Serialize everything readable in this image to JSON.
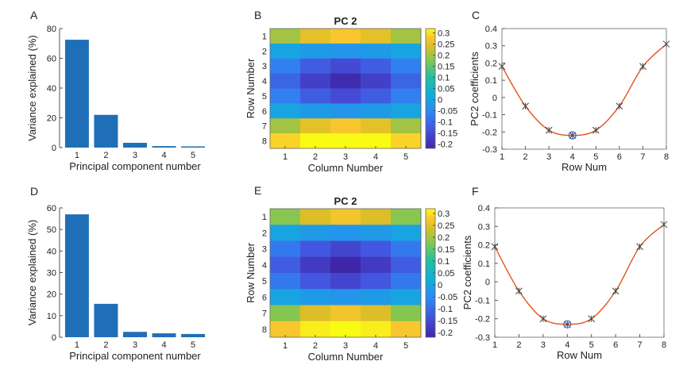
{
  "chart_data": [
    {
      "panel": "A",
      "type": "bar",
      "categories": [
        "1",
        "2",
        "3",
        "4",
        "5"
      ],
      "values": [
        72.5,
        22.0,
        3.2,
        1.0,
        0.8
      ],
      "xlabel": "Principal component number",
      "ylabel": "Variance explained (%)",
      "ylim": [
        0,
        80
      ],
      "yticks": [
        "0",
        "20",
        "40",
        "60",
        "80"
      ],
      "color": "#1f6fb8"
    },
    {
      "panel": "B",
      "type": "heatmap",
      "title": "PC 2",
      "xlabel": "Column Number",
      "ylabel": "Row Number",
      "xticks": [
        "1",
        "2",
        "3",
        "4",
        "5"
      ],
      "yticks": [
        "1",
        "2",
        "3",
        "4",
        "5",
        "6",
        "7",
        "8"
      ],
      "clim": [
        -0.22,
        0.32
      ],
      "cbticks": [
        "0.3",
        "0.25",
        "0.2",
        "0.15",
        "0.1",
        "0.05",
        "0",
        "-0.05",
        "-0.1",
        "-0.15",
        "-0.2"
      ],
      "values": [
        [
          0.2,
          0.25,
          0.28,
          0.25,
          0.2
        ],
        [
          0.0,
          -0.02,
          -0.03,
          -0.02,
          0.0
        ],
        [
          -0.07,
          -0.12,
          -0.15,
          -0.12,
          -0.07
        ],
        [
          -0.11,
          -0.17,
          -0.21,
          -0.17,
          -0.11
        ],
        [
          -0.07,
          -0.12,
          -0.15,
          -0.12,
          -0.07
        ],
        [
          0.0,
          -0.02,
          -0.03,
          -0.02,
          0.0
        ],
        [
          0.2,
          0.25,
          0.28,
          0.25,
          0.2
        ],
        [
          0.29,
          0.32,
          0.32,
          0.32,
          0.29
        ]
      ]
    },
    {
      "panel": "C",
      "type": "line",
      "x": [
        1,
        2,
        3,
        4,
        5,
        6,
        7,
        8
      ],
      "y": [
        0.18,
        -0.05,
        -0.19,
        -0.22,
        -0.19,
        -0.05,
        0.18,
        0.31
      ],
      "highlight_x": 4,
      "xlabel": "Row Num",
      "ylabel": "PC2 coefficients",
      "ylim": [
        -0.3,
        0.4
      ],
      "yticks": [
        "-0.3",
        "-0.2",
        "-0.1",
        "0",
        "0.1",
        "0.2",
        "0.3",
        "0.4"
      ],
      "xticks": [
        "1",
        "2",
        "3",
        "4",
        "5",
        "6",
        "7",
        "8"
      ]
    },
    {
      "panel": "D",
      "type": "bar",
      "categories": [
        "1",
        "2",
        "3",
        "4",
        "5"
      ],
      "values": [
        57.0,
        15.5,
        2.5,
        1.8,
        1.5
      ],
      "xlabel": "Principal component number",
      "ylabel": "Variance explained (%)",
      "ylim": [
        0,
        60
      ],
      "yticks": [
        "0",
        "10",
        "20",
        "30",
        "40",
        "50",
        "60"
      ],
      "color": "#1f6fb8"
    },
    {
      "panel": "E",
      "type": "heatmap",
      "title": "PC 2",
      "xlabel": "Column Number",
      "ylabel": "Row Number",
      "xticks": [
        "1",
        "2",
        "3",
        "4",
        "5"
      ],
      "yticks": [
        "1",
        "2",
        "3",
        "4",
        "5",
        "6",
        "7",
        "8"
      ],
      "clim": [
        -0.22,
        0.32
      ],
      "cbticks": [
        "0.3",
        "0.25",
        "0.2",
        "0.15",
        "0.1",
        "0.05",
        "0",
        "-0.05",
        "-0.1",
        "-0.15",
        "-0.2"
      ],
      "values": [
        [
          0.18,
          0.24,
          0.27,
          0.24,
          0.18
        ],
        [
          0.0,
          -0.02,
          -0.03,
          -0.02,
          0.0
        ],
        [
          -0.08,
          -0.13,
          -0.16,
          -0.13,
          -0.08
        ],
        [
          -0.12,
          -0.18,
          -0.22,
          -0.18,
          -0.12
        ],
        [
          -0.08,
          -0.13,
          -0.16,
          -0.13,
          -0.08
        ],
        [
          0.0,
          -0.02,
          -0.03,
          -0.02,
          0.0
        ],
        [
          0.18,
          0.24,
          0.27,
          0.24,
          0.18
        ],
        [
          0.28,
          0.31,
          0.32,
          0.31,
          0.28
        ]
      ]
    },
    {
      "panel": "F",
      "type": "line",
      "x": [
        1,
        2,
        3,
        4,
        5,
        6,
        7,
        8
      ],
      "y": [
        0.19,
        -0.05,
        -0.2,
        -0.23,
        -0.2,
        -0.05,
        0.19,
        0.31
      ],
      "highlight_x": 4,
      "xlabel": "Row Num",
      "ylabel": "PC2 coefficients",
      "ylim": [
        -0.3,
        0.4
      ],
      "yticks": [
        "-0.3",
        "-0.2",
        "-0.1",
        "0",
        "0.1",
        "0.2",
        "0.3",
        "0.4"
      ],
      "xticks": [
        "1",
        "2",
        "3",
        "4",
        "5",
        "6",
        "7",
        "8"
      ]
    }
  ],
  "colors": {
    "bar": "#1f6fb8",
    "curve": "#e0541d",
    "marker": "#444444",
    "highlight": "#3a66c4"
  }
}
